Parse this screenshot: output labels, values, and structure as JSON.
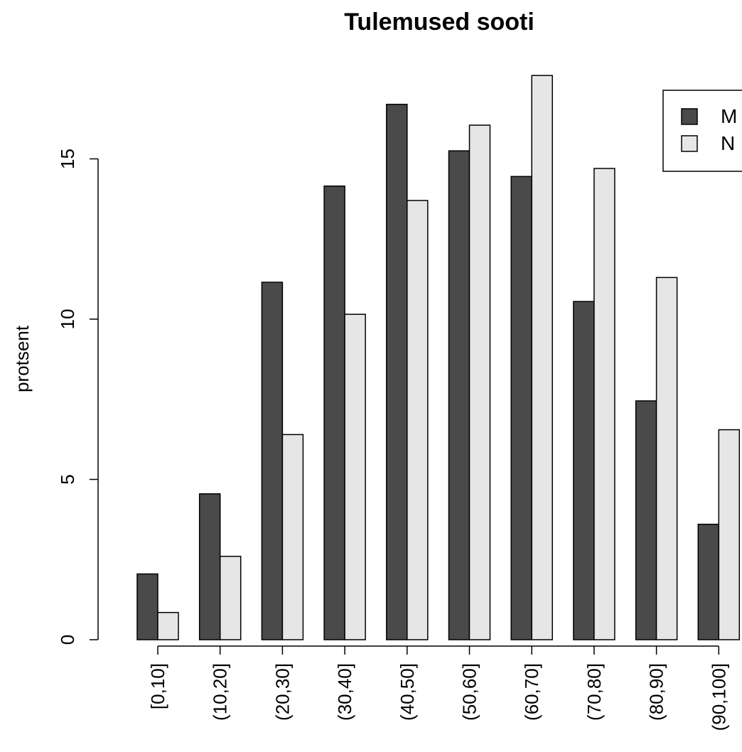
{
  "chart_data": {
    "type": "bar",
    "title": "Tulemused sooti",
    "xlabel": "",
    "ylabel": "protsent",
    "ylim": [
      0,
      18
    ],
    "yticks": [
      "0",
      "5",
      "10",
      "15"
    ],
    "categories": [
      "[0,10]",
      "(10,20]",
      "(20,30]",
      "(30,40]",
      "(40,50]",
      "(50,60]",
      "(60,70]",
      "(70,80]",
      "(80,90]",
      "(90,100]"
    ],
    "series": [
      {
        "name": "M",
        "color": "#4a4a4a",
        "values": [
          2.05,
          4.55,
          11.15,
          14.15,
          16.7,
          15.25,
          14.45,
          10.55,
          7.45,
          3.6
        ]
      },
      {
        "name": "N",
        "color": "#e6e6e6",
        "values": [
          0.85,
          2.6,
          6.4,
          10.15,
          13.7,
          16.05,
          17.6,
          14.7,
          11.3,
          6.55
        ]
      }
    ],
    "legend": {
      "position": "top-right",
      "entries": [
        "M",
        "N"
      ]
    },
    "grid": false
  }
}
